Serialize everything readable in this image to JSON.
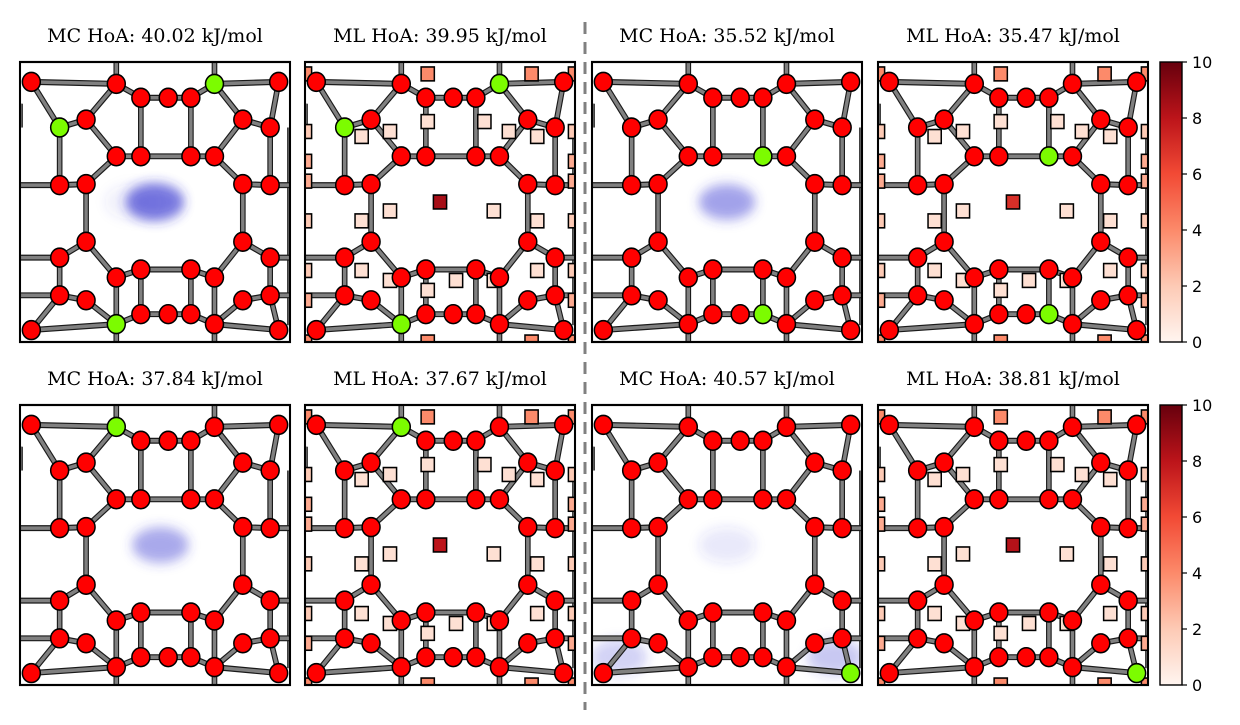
{
  "figure": {
    "rows": [
      {
        "panels": [
          {
            "title": "MC HoA: 40.02 kJ/mol",
            "kind": "MC",
            "density": [
              [
                0.5,
                0.5,
                0.75
              ],
              [
                0.42,
                0.5,
                0.15
              ],
              [
                0.5,
                0.5,
                0.9
              ]
            ],
            "green": [
              [
                206,
                80
              ],
              [
                42,
                124
              ],
              [
                265,
                279
              ],
              [
                102,
                322
              ]
            ]
          },
          {
            "title": "ML HoA: 39.95 kJ/mol",
            "kind": "ML",
            "center_level": 8.5,
            "green": [
              [
                206,
                80
              ],
              [
                42,
                124
              ],
              [
                265,
                279
              ],
              [
                102,
                322
              ]
            ]
          },
          {
            "title": "MC HoA: 35.52 kJ/mol",
            "kind": "MC",
            "density": [
              [
                0.5,
                0.5,
                0.85
              ]
            ],
            "green": [
              [
                128,
                138
              ],
              [
                187,
                147
              ],
              [
                187,
                322
              ]
            ]
          },
          {
            "title": "ML HoA: 35.47 kJ/mol",
            "kind": "ML",
            "center_level": 7.0,
            "green": [
              [
                128,
                138
              ],
              [
                187,
                147
              ],
              [
                187,
                322
              ]
            ]
          }
        ]
      },
      {
        "panels": [
          {
            "title": "MC HoA: 37.84 kJ/mol",
            "kind": "MC",
            "density": [
              [
                0.52,
                0.5,
                0.8
              ]
            ],
            "green": [
              [
                102,
                80
              ],
              [
                102,
                293
              ]
            ]
          },
          {
            "title": "ML HoA: 37.67 kJ/mol",
            "kind": "ML",
            "center_level": 8.0,
            "green": [
              [
                102,
                80
              ],
              [
                102,
                293
              ]
            ]
          },
          {
            "title": "MC HoA: 40.57 kJ/mol",
            "kind": "MC",
            "density": [
              [
                0.5,
                0.5,
                0.2
              ],
              [
                0.9,
                0.9,
                0.5
              ],
              [
                0.1,
                0.9,
                0.4
              ]
            ],
            "green": [
              [
                42,
                279
              ],
              [
                157,
                300
              ],
              [
                70,
                322
              ],
              [
                265,
                322
              ]
            ]
          },
          {
            "title": "ML HoA: 38.81 kJ/mol",
            "kind": "ML",
            "center_level": 8.2,
            "green": [
              [
                42,
                279
              ],
              [
                157,
                300
              ],
              [
                70,
                322
              ],
              [
                265,
                322
              ]
            ]
          }
        ]
      }
    ],
    "colorbar": {
      "ticks": [
        "0",
        "2",
        "4",
        "6",
        "8",
        "10"
      ],
      "vmin": 0,
      "vmax": 10,
      "colors": [
        "#fff5f0",
        "#fdcab5",
        "#fc8a6a",
        "#f24a35",
        "#bc141a",
        "#67000d"
      ]
    },
    "colors": {
      "atom_red": "#ff0000",
      "atom_green": "#7cfc00",
      "bond": "#808080",
      "mc_density": "#3c3cd2",
      "divider": "#808080"
    }
  }
}
